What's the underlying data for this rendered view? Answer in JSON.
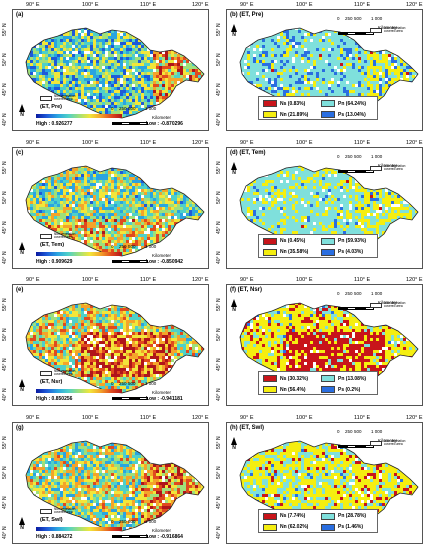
{
  "lon_ticks": [
    "90° E",
    "100° E",
    "110° E",
    "120° E"
  ],
  "lat_ticks": [
    "55° N",
    "50° N",
    "45° N",
    "40° N"
  ],
  "legend_nonveg": "Non vegetation covered area",
  "scale_ticks": [
    "0",
    "250",
    "500",
    "1 000"
  ],
  "km_label": "Kilometer",
  "north_label": "N",
  "left_panels": [
    {
      "label": "(a)",
      "sub": "(ET, Pre)",
      "high": "High : 0.926277",
      "low": "Low : -0.870296"
    },
    {
      "label": "(c)",
      "sub": "(ET, Tem)",
      "high": "High : 0.909629",
      "low": "Low : -0.850942"
    },
    {
      "label": "(e)",
      "sub": "(ET, Nsr)",
      "high": "High : 0.850256",
      "low": "Low : -0.941181"
    },
    {
      "label": "(g)",
      "sub": "(ET, Swl)",
      "high": "High : 0.884272",
      "low": "Low : -0.916864"
    }
  ],
  "right_panels": [
    {
      "label": "(b) (ET, Pre)",
      "ns": "Ns (0.83%)",
      "pn": "Pn (64.24%)",
      "nn": "Nn (21.89%)",
      "ps": "Ps (13.04%)"
    },
    {
      "label": "(d) (ET, Tem)",
      "ns": "Ns (0.45%)",
      "pn": "Pn (59.93%)",
      "nn": "Nn (35.58%)",
      "ps": "Ps (4.03%)"
    },
    {
      "label": "(f) (ET, Nsr)",
      "ns": "Ns (30.32%)",
      "pn": "Pn (13.08%)",
      "nn": "Nn (56.4%)",
      "ps": "Ps (0.2%)"
    },
    {
      "label": "(h) (ET, Swl)",
      "ns": "Ns (7.74%)",
      "pn": "Pn (28.78%)",
      "nn": "Nn (62.02%)",
      "ps": "Ps (1.46%)"
    }
  ],
  "colors": {
    "ns": "#c8141a",
    "pn": "#7fe0dc",
    "nn": "#f5ee10",
    "ps": "#2a6ee0"
  }
}
